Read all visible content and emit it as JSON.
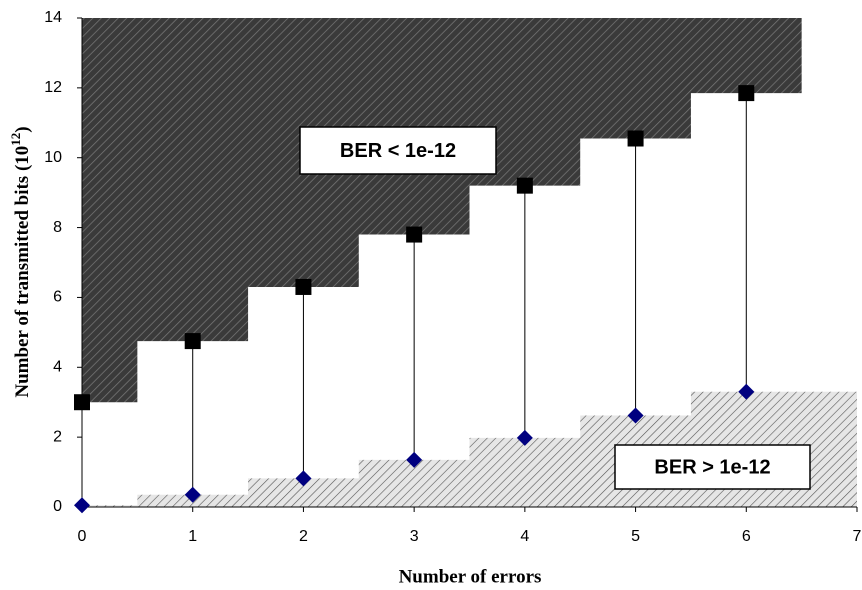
{
  "chart_data": {
    "type": "scatter",
    "x_label": "Number of errors",
    "y_label": {
      "text": "Number of transmitted bits (10",
      "superscript": "12",
      "suffix": ")"
    },
    "x": [
      0,
      1,
      2,
      3,
      4,
      5,
      6
    ],
    "series": [
      {
        "color": "#000000",
        "marker": "square",
        "values": [
          3.0,
          4.75,
          6.3,
          7.8,
          9.2,
          10.55,
          11.85
        ]
      },
      {
        "color": "#000080",
        "marker": "diamond",
        "values": [
          0.05,
          0.35,
          0.82,
          1.35,
          1.98,
          2.62,
          3.3
        ]
      }
    ],
    "annotations": [
      "BER < 1e-12",
      "BER > 1e-12"
    ],
    "xlim": [
      0,
      7
    ],
    "ylim": [
      0,
      14
    ],
    "xticks": [
      0,
      1,
      2,
      3,
      4,
      5,
      6,
      7
    ],
    "yticks": [
      0,
      2,
      4,
      6,
      8,
      10,
      12,
      14
    ],
    "grid": false
  }
}
